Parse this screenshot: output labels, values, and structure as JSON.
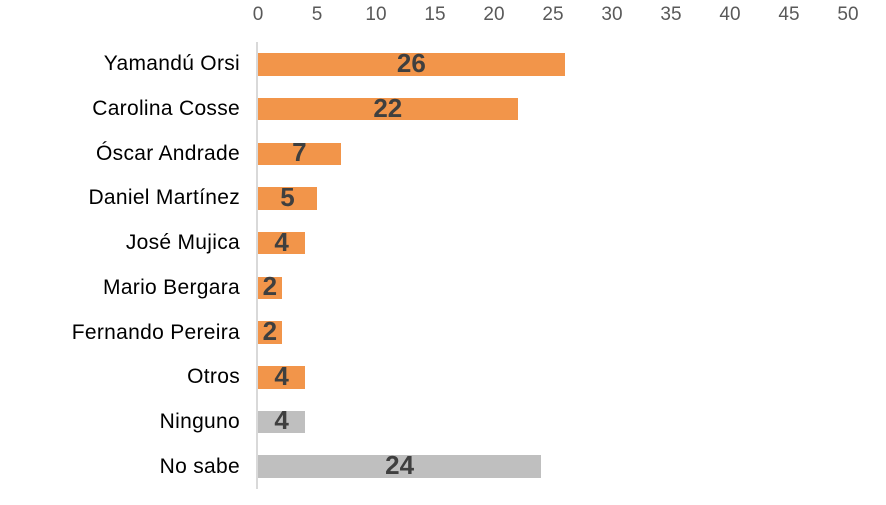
{
  "chart_data": {
    "type": "bar",
    "orientation": "horizontal",
    "title": "",
    "xlabel": "",
    "ylabel": "",
    "grid": false,
    "legend": "none",
    "value_labels": "centered-inside-bars",
    "axis_position": "top",
    "xlim": [
      0,
      50
    ],
    "xticks": [
      0,
      5,
      10,
      15,
      20,
      25,
      30,
      35,
      40,
      45,
      50
    ],
    "categories": [
      "Yamandú Orsi",
      "Carolina Cosse",
      "Óscar Andrade",
      "Daniel Martínez",
      "José Mujica",
      "Mario Bergara",
      "Fernando Pereira",
      "Otros",
      "Ninguno",
      "No sabe"
    ],
    "values": [
      26,
      22,
      7,
      5,
      4,
      2,
      2,
      4,
      4,
      24
    ],
    "bar_color_keys": [
      "orange",
      "orange",
      "orange",
      "orange",
      "orange",
      "orange",
      "orange",
      "orange",
      "gray",
      "gray"
    ],
    "colors": {
      "orange": "#f2954a",
      "gray": "#bfbfbf",
      "value_label": "#3f3f3f",
      "tick_label": "#595959",
      "category_label": "#000000",
      "axis_line": "#d9d9d9"
    }
  }
}
